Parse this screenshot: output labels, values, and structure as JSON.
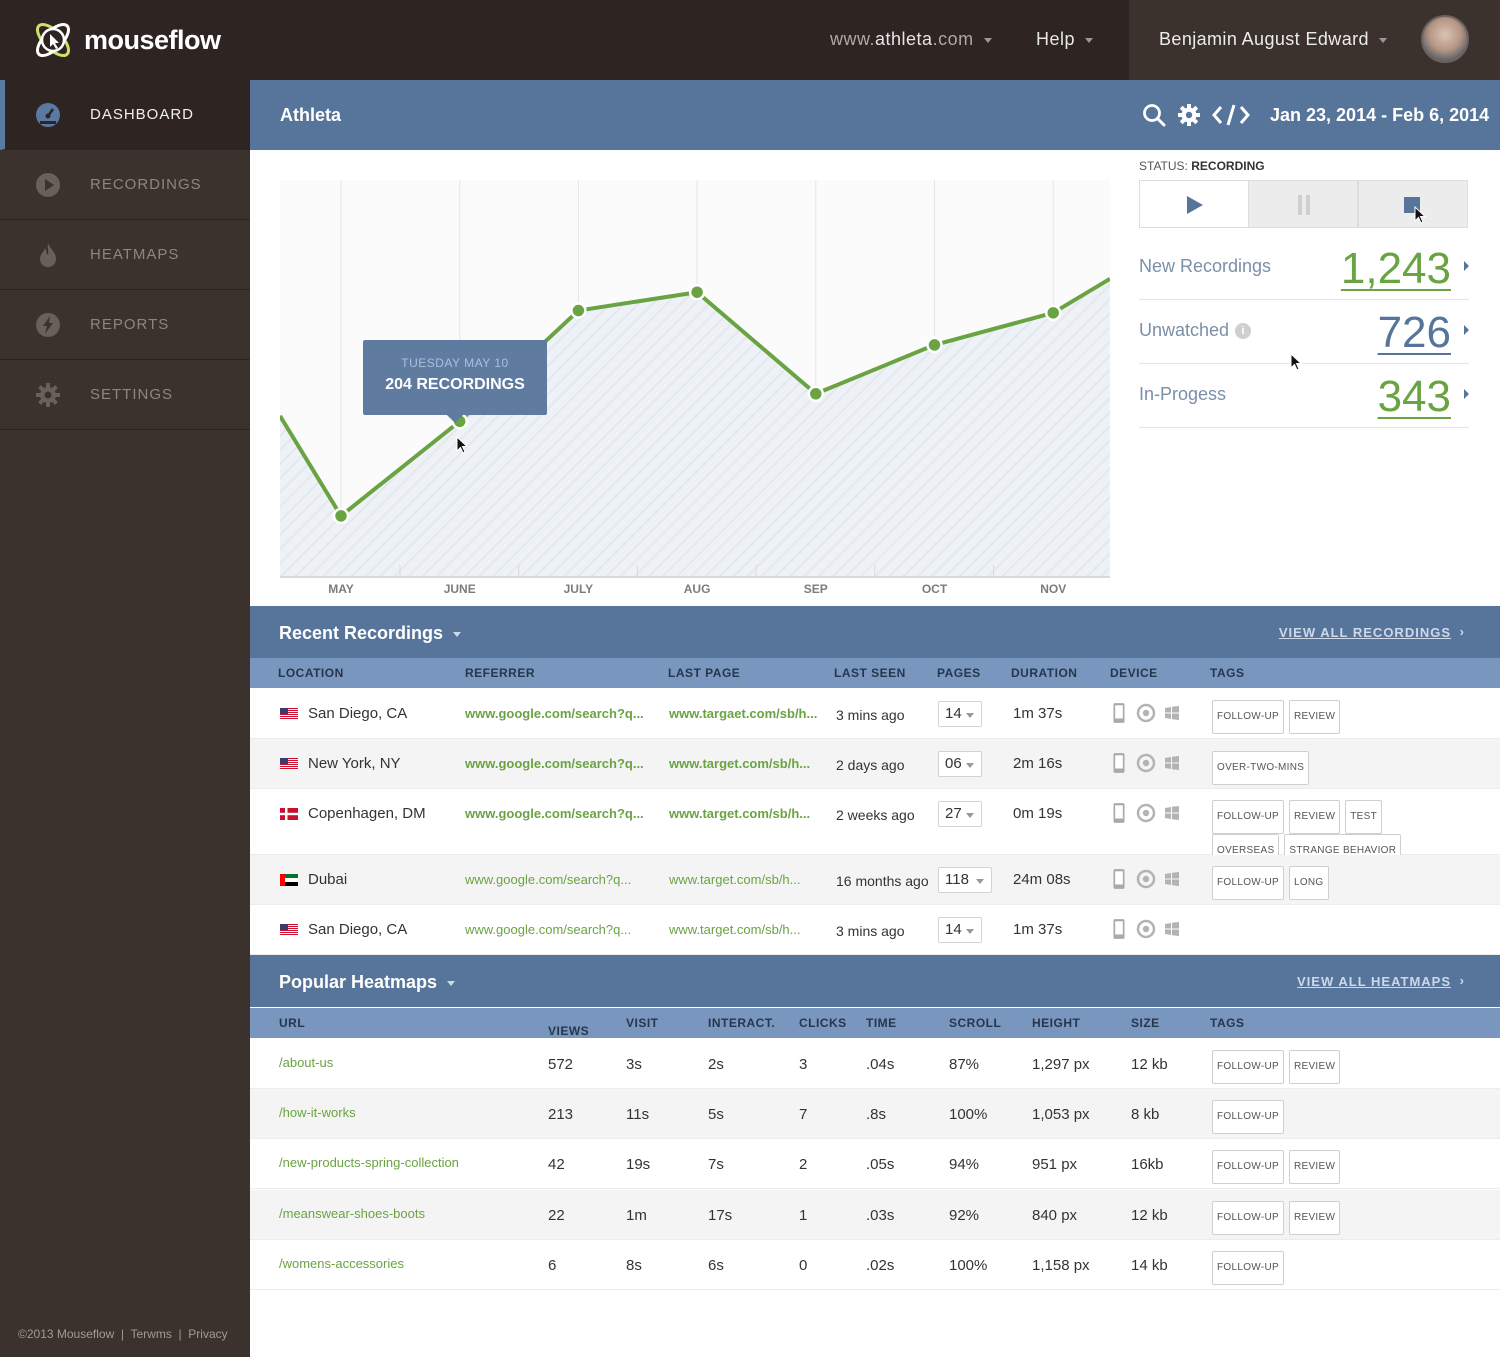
{
  "app": {
    "name": "mouseflow"
  },
  "topnav": {
    "site_prefix": "www.",
    "site_domain": "athleta",
    "site_suffix": ".com",
    "help": "Help",
    "user_name": "Benjamin August Edward"
  },
  "sidebar": {
    "items": [
      {
        "label": "DASHBOARD",
        "icon": "dashboard-gauge-icon"
      },
      {
        "label": "RECORDINGS",
        "icon": "play-circle-icon"
      },
      {
        "label": "HEATMAPS",
        "icon": "flame-icon"
      },
      {
        "label": "REPORTS",
        "icon": "lightning-icon"
      },
      {
        "label": "SETTINGS",
        "icon": "gear-icon"
      }
    ],
    "footer": {
      "copyright": "©2013 Mouseflow",
      "terms": "Terwms",
      "privacy": "Privacy"
    }
  },
  "header": {
    "title": "Athleta",
    "date_range": "Jan 23, 2014 - Feb 6, 2014"
  },
  "tooltip": {
    "date": "TUESDAY MAY 10",
    "value": "204 RECORDINGS"
  },
  "chart_data": {
    "type": "area",
    "categories": [
      "MAY",
      "JUNE",
      "JULY",
      "AUG",
      "SEP",
      "OCT",
      "NOV"
    ],
    "values": [
      80,
      204,
      349,
      373,
      240,
      304,
      346
    ],
    "ylim": [
      0,
      520
    ],
    "color": "#6aa342"
  },
  "status": {
    "label": "STATUS:",
    "value": "RECORDING"
  },
  "stats": [
    {
      "label": "New Recordings",
      "value": "1,243",
      "color": "#6aa342"
    },
    {
      "label": "Unwatched",
      "value": "726",
      "color": "#57749a"
    },
    {
      "label": "In-Progess",
      "value": "343",
      "color": "#6aa342"
    }
  ],
  "recordings": {
    "title": "Recent Recordings",
    "view_all": "VIEW ALL RECORDINGS",
    "columns": [
      "LOCATION",
      "REFERRER",
      "LAST PAGE",
      "LAST SEEN",
      "PAGES",
      "DURATION",
      "DEVICE",
      "TAGS"
    ],
    "rows": [
      {
        "flag": "us",
        "location": "San Diego, CA",
        "referrer": "www.google.com/search?q...",
        "last_page": "www.targaet.com/sb/h...",
        "last_seen": "3 mins ago",
        "pages": "14",
        "duration": "1m 37s",
        "tags": [
          "FOLLOW-UP",
          "REVIEW"
        ]
      },
      {
        "flag": "us",
        "location": "New York, NY",
        "referrer": "www.google.com/search?q...",
        "last_page": "www.target.com/sb/h...",
        "last_seen": "2 days ago",
        "pages": "06",
        "duration": "2m 16s",
        "tags": [
          "OVER-TWO-MINS"
        ]
      },
      {
        "flag": "dk",
        "location": "Copenhagen, DM",
        "referrer": "www.google.com/search?q...",
        "last_page": "www.target.com/sb/h...",
        "last_seen": "2 weeks ago",
        "pages": "27",
        "duration": "0m 19s",
        "tags": [
          "FOLLOW-UP",
          "REVIEW",
          "TEST",
          "OVERSEAS",
          "STRANGE BEHAVIOR"
        ]
      },
      {
        "flag": "ae",
        "location": "Dubai",
        "referrer": "www.google.com/search?q...",
        "last_page": "www.target.com/sb/h...",
        "last_seen": "16 months ago",
        "pages": "118",
        "duration": "24m 08s",
        "tags": [
          "FOLLOW-UP",
          "LONG"
        ]
      },
      {
        "flag": "us",
        "location": "San Diego, CA",
        "referrer": "www.google.com/search?q...",
        "last_page": "www.target.com/sb/h...",
        "last_seen": "3 mins ago",
        "pages": "14",
        "duration": "1m 37s",
        "tags": []
      }
    ]
  },
  "heatmaps": {
    "title": "Popular Heatmaps",
    "view_all": "VIEW ALL HEATMAPS",
    "columns": [
      "URL",
      "VIEWS",
      "VISIT",
      "INTERACT.",
      "CLICKS",
      "TIME",
      "SCROLL",
      "HEIGHT",
      "SIZE",
      "TAGS"
    ],
    "rows": [
      {
        "url": "/about-us",
        "views": "572",
        "visit": "3s",
        "interact": "2s",
        "clicks": "3",
        "time": ".04s",
        "scroll": "87%",
        "height": "1,297 px",
        "size": "12 kb",
        "tags": [
          "FOLLOW-UP",
          "REVIEW"
        ]
      },
      {
        "url": "/how-it-works",
        "views": "213",
        "visit": "11s",
        "interact": "5s",
        "clicks": "7",
        "time": ".8s",
        "scroll": "100%",
        "height": "1,053 px",
        "size": "8 kb",
        "tags": [
          "FOLLOW-UP"
        ]
      },
      {
        "url": "/new-products-spring-collection",
        "views": "42",
        "visit": "19s",
        "interact": "7s",
        "clicks": "2",
        "time": ".05s",
        "scroll": "94%",
        "height": "951 px",
        "size": "16kb",
        "tags": [
          "FOLLOW-UP",
          "REVIEW"
        ]
      },
      {
        "url": "/meanswear-shoes-boots",
        "views": "22",
        "visit": "1m",
        "interact": "17s",
        "clicks": "1",
        "time": ".03s",
        "scroll": "92%",
        "height": "840 px",
        "size": "12 kb",
        "tags": [
          "FOLLOW-UP",
          "REVIEW"
        ]
      },
      {
        "url": "/womens-accessories",
        "views": "6",
        "visit": "8s",
        "interact": "6s",
        "clicks": "0",
        "time": ".02s",
        "scroll": "100%",
        "height": "1,158 px",
        "size": "14 kb",
        "tags": [
          "FOLLOW-UP"
        ]
      }
    ]
  }
}
